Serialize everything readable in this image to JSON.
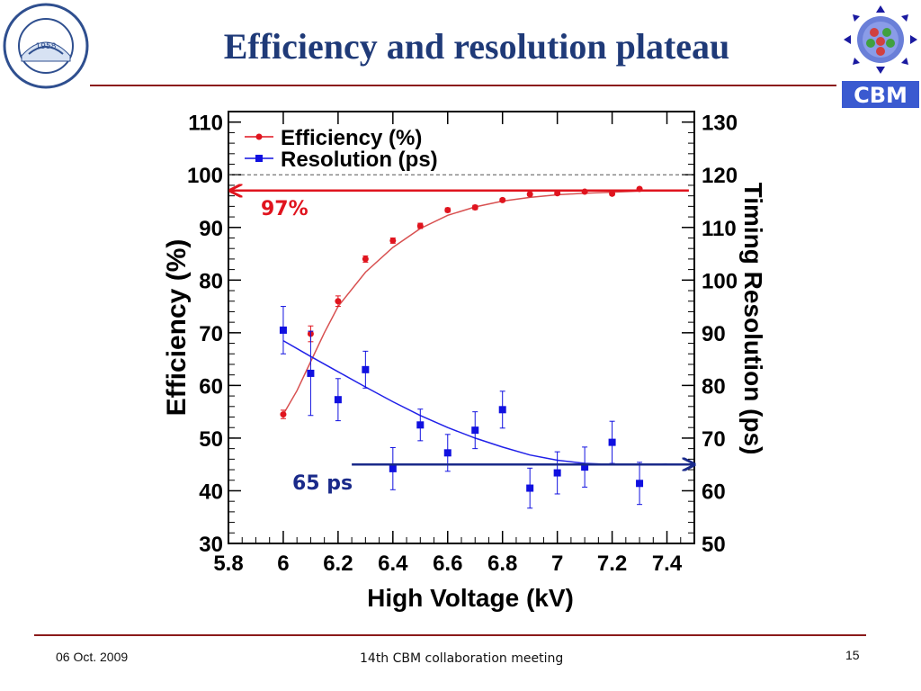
{
  "slide": {
    "title": "Efficiency and resolution plateau",
    "footer_date": "06 Oct. 2009",
    "footer_meeting": "14th CBM collaboration meeting",
    "page_number": "15",
    "logo_left_year": "1958",
    "logo_right_text": "CBM"
  },
  "colors": {
    "title": "#1f3a78",
    "rule": "#8b1a1a",
    "efficiency": "#e0141e",
    "resolution": "#1010e0",
    "arrow_red": "#e0141e",
    "arrow_blue": "#1a2a8a"
  },
  "chart_data": {
    "type": "scatter",
    "xlabel": "High Voltage (kV)",
    "ylabel": "Efficiency (%)",
    "y2label": "Timing Resolution (ps)",
    "xlim": [
      5.8,
      7.5
    ],
    "ylim": [
      30,
      112
    ],
    "y2lim": [
      50,
      132
    ],
    "x_ticks": [
      "5.8",
      "6",
      "6.2",
      "6.4",
      "6.6",
      "6.8",
      "7",
      "7.2",
      "7.4"
    ],
    "y_ticks": [
      "30",
      "40",
      "50",
      "60",
      "70",
      "80",
      "90",
      "100",
      "110"
    ],
    "y2_ticks": [
      "50",
      "60",
      "70",
      "80",
      "90",
      "100",
      "110",
      "120",
      "130"
    ],
    "legend_position": "top-left",
    "series": [
      {
        "name": "Efficiency (%)",
        "axis": "left",
        "marker": "circle",
        "x": [
          6.0,
          6.1,
          6.2,
          6.3,
          6.4,
          6.5,
          6.6,
          6.7,
          6.8,
          6.9,
          7.0,
          7.1,
          7.2,
          7.3
        ],
        "y": [
          54.5,
          69.8,
          76.0,
          84.0,
          87.5,
          90.3,
          93.3,
          93.8,
          95.2,
          96.3,
          96.5,
          96.8,
          96.4,
          97.3
        ],
        "yerr": [
          0.8,
          1.5,
          1.0,
          0.6,
          0.5,
          0.5,
          0.4,
          0.4,
          0.3,
          0.3,
          0.3,
          0.3,
          0.3,
          0.3
        ],
        "fit": [
          [
            6.0,
            54.5
          ],
          [
            6.05,
            59.0
          ],
          [
            6.1,
            64.5
          ],
          [
            6.15,
            70.0
          ],
          [
            6.2,
            75.0
          ],
          [
            6.3,
            81.5
          ],
          [
            6.4,
            86.2
          ],
          [
            6.5,
            89.8
          ],
          [
            6.6,
            92.3
          ],
          [
            6.7,
            93.9
          ],
          [
            6.8,
            95.0
          ],
          [
            6.9,
            95.7
          ],
          [
            7.0,
            96.2
          ],
          [
            7.1,
            96.5
          ],
          [
            7.2,
            96.7
          ],
          [
            7.3,
            96.9
          ]
        ]
      },
      {
        "name": "Resolution (ps)",
        "axis": "right",
        "marker": "square",
        "x": [
          6.0,
          6.1,
          6.2,
          6.3,
          6.4,
          6.5,
          6.6,
          6.7,
          6.8,
          6.9,
          7.0,
          7.1,
          7.2,
          7.3
        ],
        "y": [
          90.5,
          82.3,
          77.3,
          83.0,
          64.2,
          72.5,
          67.2,
          71.5,
          75.4,
          60.5,
          63.4,
          64.5,
          69.2,
          61.4
        ],
        "yerr": [
          4.5,
          8.0,
          4.0,
          3.5,
          4.0,
          3.0,
          3.5,
          3.5,
          3.5,
          3.8,
          4.0,
          3.8,
          4.0,
          4.0
        ],
        "fit": [
          [
            6.0,
            88.5
          ],
          [
            6.1,
            85.5
          ],
          [
            6.2,
            82.6
          ],
          [
            6.3,
            79.7
          ],
          [
            6.4,
            76.9
          ],
          [
            6.5,
            74.3
          ],
          [
            6.6,
            72.0
          ],
          [
            6.7,
            70.0
          ],
          [
            6.8,
            68.3
          ],
          [
            6.9,
            66.8
          ],
          [
            7.0,
            65.8
          ],
          [
            7.1,
            65.2
          ],
          [
            7.2,
            65.0
          ],
          [
            7.3,
            65.0
          ],
          [
            7.4,
            65.1
          ]
        ]
      }
    ],
    "reference_line_y": 100,
    "annotations": [
      {
        "text": "97%",
        "axis": "left",
        "y": 97,
        "arrow_from_x": 7.48,
        "arrow_to_x": 5.8,
        "color": "#e0141e"
      },
      {
        "text": "65 ps",
        "axis": "right",
        "y": 65,
        "arrow_from_x": 6.25,
        "arrow_to_x": 7.48,
        "color": "#1a2a8a"
      }
    ]
  }
}
